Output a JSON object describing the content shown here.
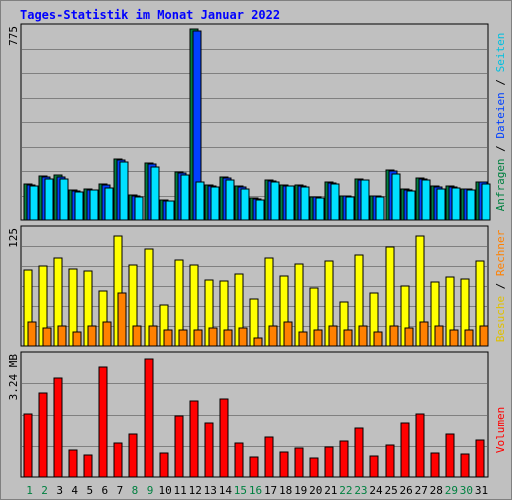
{
  "title": "Tages-Statistik im Monat Januar 2022",
  "colors": {
    "background": "#c0c0c0",
    "title": "#0000ff",
    "anfragen": "#008040",
    "dateien": "#0040ff",
    "seiten": "#00e0ff",
    "besuche": "#ffff00",
    "rechner": "#ff8000",
    "volumen": "#ff0000",
    "weekend_day": "#008040",
    "weekday": "#000000"
  },
  "right_labels": {
    "top": [
      {
        "text": "Anfragen",
        "color": "#008040"
      },
      {
        "text": "Dateien",
        "color": "#0040ff"
      },
      {
        "text": "Seiten",
        "color": "#00c0e0"
      }
    ],
    "middle": [
      {
        "text": "Besuche",
        "color": "#e0c000"
      },
      {
        "text": "Rechner",
        "color": "#ff8000"
      }
    ],
    "bottom": [
      {
        "text": "Volumen",
        "color": "#ff0000"
      }
    ]
  },
  "chart_data": [
    {
      "type": "bar",
      "panel": "top",
      "max_label": "775",
      "ylim": [
        0,
        775
      ],
      "categories": [
        "1",
        "2",
        "3",
        "4",
        "5",
        "6",
        "7",
        "8",
        "9",
        "10",
        "11",
        "12",
        "13",
        "14",
        "15",
        "16",
        "17",
        "18",
        "19",
        "20",
        "21",
        "22",
        "23",
        "24",
        "25",
        "26",
        "27",
        "28",
        "29",
        "30",
        "31"
      ],
      "series": [
        {
          "name": "Anfragen",
          "values": [
            145,
            175,
            178,
            118,
            122,
            142,
            242,
            100,
            227,
            78,
            193,
            765,
            140,
            170,
            137,
            87,
            160,
            140,
            138,
            92,
            152,
            97,
            165,
            97,
            198,
            123,
            168,
            135,
            135,
            125,
            153
          ]
        },
        {
          "name": "Dateien",
          "values": [
            140,
            170,
            172,
            115,
            120,
            138,
            238,
            96,
            222,
            76,
            188,
            755,
            136,
            166,
            133,
            84,
            156,
            137,
            135,
            90,
            148,
            94,
            161,
            94,
            194,
            120,
            164,
            131,
            132,
            122,
            150
          ]
        },
        {
          "name": "Seiten",
          "values": [
            135,
            165,
            165,
            112,
            118,
            128,
            230,
            92,
            210,
            75,
            180,
            150,
            130,
            160,
            125,
            80,
            150,
            135,
            132,
            88,
            145,
            90,
            158,
            90,
            185,
            115,
            160,
            125,
            128,
            118,
            145
          ]
        }
      ]
    },
    {
      "type": "bar",
      "panel": "middle",
      "max_label": "125",
      "ylim": [
        0,
        125
      ],
      "categories": [
        "1",
        "2",
        "3",
        "4",
        "5",
        "6",
        "7",
        "8",
        "9",
        "10",
        "11",
        "12",
        "13",
        "14",
        "15",
        "16",
        "17",
        "18",
        "19",
        "20",
        "21",
        "22",
        "23",
        "24",
        "25",
        "26",
        "27",
        "28",
        "29",
        "30",
        "31"
      ],
      "series": [
        {
          "name": "Besuche",
          "values": [
            80,
            85,
            93,
            82,
            79,
            58,
            117,
            86,
            103,
            43,
            91,
            86,
            70,
            69,
            76,
            50,
            93,
            74,
            87,
            61,
            90,
            47,
            96,
            56,
            105,
            64,
            116,
            68,
            73,
            71,
            90
          ]
        },
        {
          "name": "Rechner",
          "values": [
            25,
            19,
            21,
            15,
            21,
            25,
            56,
            21,
            21,
            17,
            17,
            17,
            19,
            17,
            19,
            9,
            21,
            25,
            15,
            17,
            21,
            17,
            21,
            15,
            21,
            19,
            25,
            21,
            17,
            17,
            21
          ]
        }
      ]
    },
    {
      "type": "bar",
      "panel": "bottom",
      "max_label": "3.24 MB",
      "ylim": [
        0,
        3.24
      ],
      "categories": [
        "1",
        "2",
        "3",
        "4",
        "5",
        "6",
        "7",
        "8",
        "9",
        "10",
        "11",
        "12",
        "13",
        "14",
        "15",
        "16",
        "17",
        "18",
        "19",
        "20",
        "21",
        "22",
        "23",
        "24",
        "25",
        "26",
        "27",
        "28",
        "29",
        "30",
        "31"
      ],
      "series": [
        {
          "name": "Volumen",
          "values": [
            1.67,
            2.2,
            2.61,
            0.7,
            0.59,
            2.91,
            0.89,
            1.14,
            3.12,
            0.62,
            1.61,
            2.01,
            1.41,
            2.06,
            0.89,
            0.53,
            1.06,
            0.67,
            0.76,
            0.51,
            0.8,
            0.96,
            1.3,
            0.55,
            0.84,
            1.41,
            1.67,
            0.62,
            1.14,
            0.6,
            0.97
          ]
        }
      ]
    }
  ],
  "day_colors": [
    "#008040",
    "#008040",
    "#000000",
    "#000000",
    "#000000",
    "#000000",
    "#000000",
    "#008040",
    "#008040",
    "#000000",
    "#000000",
    "#000000",
    "#000000",
    "#000000",
    "#008040",
    "#008040",
    "#000000",
    "#000000",
    "#000000",
    "#000000",
    "#000000",
    "#008040",
    "#008040",
    "#000000",
    "#000000",
    "#000000",
    "#000000",
    "#000000",
    "#008040",
    "#008040",
    "#000000"
  ]
}
